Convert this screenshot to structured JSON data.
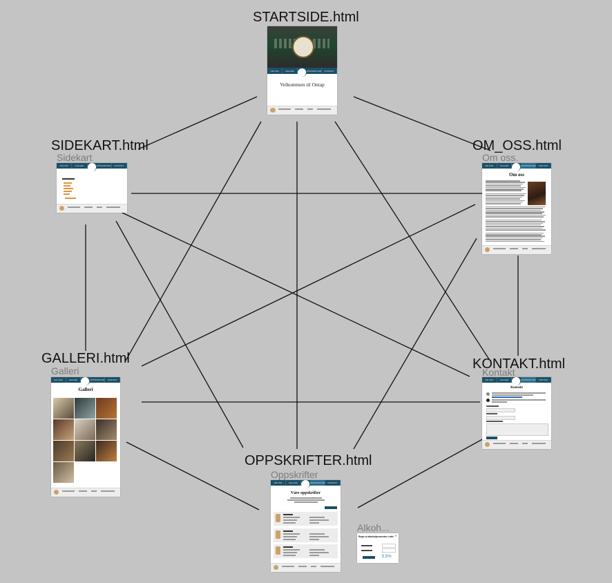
{
  "nodes": {
    "startside": {
      "title": "STARTSIDE.html",
      "welcome": "Velkommen til Ontap"
    },
    "sidekart": {
      "title": "SIDEKART.html",
      "subtitle": "Sidekart"
    },
    "om_oss": {
      "title": "OM_OSS.html",
      "subtitle": "Om oss.",
      "heading": "Om oss"
    },
    "galleri": {
      "title": "GALLERI.html",
      "subtitle": "Galleri",
      "heading": "Galleri"
    },
    "kontakt": {
      "title": "KONTAKT.html",
      "subtitle": "Kontakt",
      "heading": "Kontakt"
    },
    "oppskrifter": {
      "title": "OPPSKRIFTER.html",
      "subtitle": "Oppskrifter",
      "heading": "Våre oppskrifter"
    },
    "alkohol": {
      "subtitle": "Alkoh...",
      "heading": "Regn ut alkoholprosenten i ølet",
      "result": "5,5%"
    }
  },
  "colors": {
    "background": "#c4c4c4",
    "nav": "#1d4f67",
    "edge": "#111111",
    "accent": "#e8913a"
  }
}
